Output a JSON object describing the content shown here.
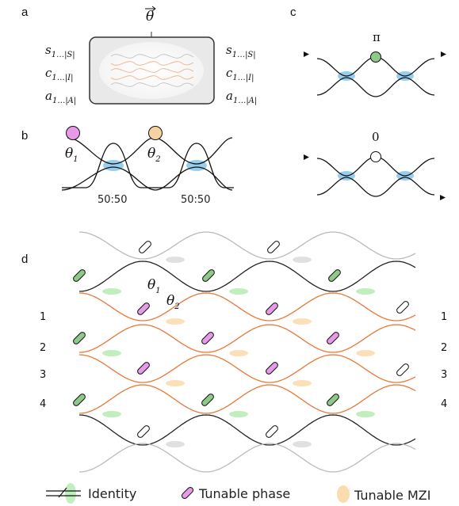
{
  "panels": {
    "a": "a",
    "b": "b",
    "c": "c",
    "d": "d"
  },
  "panel_a": {
    "theta": "θ",
    "left_labels": [
      {
        "base": "s",
        "sub": "1…|S|"
      },
      {
        "base": "c",
        "sub": "1…|I|"
      },
      {
        "base": "a",
        "sub": "1…|A|"
      }
    ],
    "right_labels": [
      {
        "base": "s",
        "sub": "1…|S|"
      },
      {
        "base": "c",
        "sub": "1…|I|"
      },
      {
        "base": "a",
        "sub": "1…|A|"
      }
    ]
  },
  "panel_b": {
    "theta1": "θ",
    "theta1_sub": "1",
    "theta2": "θ",
    "theta2_sub": "2",
    "splitter_left": "50:50",
    "splitter_right": "50:50"
  },
  "panel_c": {
    "top_phase": "π",
    "bottom_phase": "0"
  },
  "panel_d": {
    "theta1": "θ",
    "theta1_sub": "1",
    "theta2": "θ",
    "theta2_sub": "2",
    "left_indices": [
      "1",
      "2",
      "3",
      "4"
    ],
    "right_indices": [
      "1",
      "2",
      "3",
      "4"
    ]
  },
  "legend": {
    "identity": "Identity",
    "tunable_phase": "Tunable phase",
    "tunable_mzi": "Tunable MZI"
  },
  "colors": {
    "phase_pink": "#e79ae8",
    "phase_orange": "#f5d3a0",
    "phase_green": "#8ec98a",
    "coupler_blue": "#86c5ea",
    "identity_green": "#b9ecb5",
    "mzi_peach": "#fbdcb0",
    "waveguide_orange": "#e87838"
  }
}
